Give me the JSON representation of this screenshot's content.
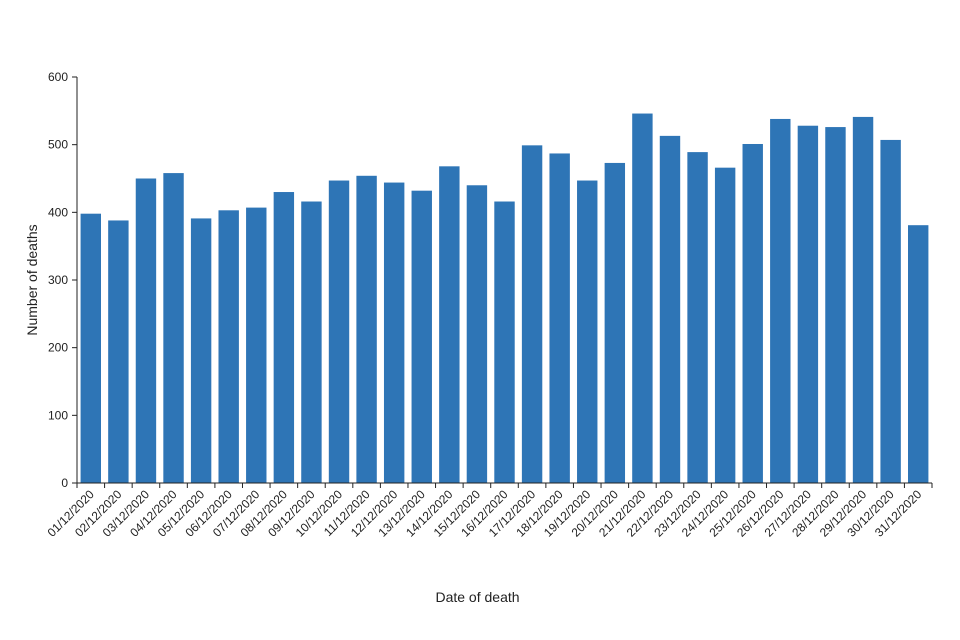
{
  "chart_data": {
    "type": "bar",
    "xlabel": "Date of death",
    "ylabel": "Number of deaths",
    "ylim": [
      0,
      600
    ],
    "yticks": [
      0,
      100,
      200,
      300,
      400,
      500,
      600
    ],
    "grid": false,
    "legend": "none",
    "bar_color": "#2e75b6",
    "categories": [
      "01/12/2020",
      "02/12/2020",
      "03/12/2020",
      "04/12/2020",
      "05/12/2020",
      "06/12/2020",
      "07/12/2020",
      "08/12/2020",
      "09/12/2020",
      "10/12/2020",
      "11/12/2020",
      "12/12/2020",
      "13/12/2020",
      "14/12/2020",
      "15/12/2020",
      "16/12/2020",
      "17/12/2020",
      "18/12/2020",
      "19/12/2020",
      "20/12/2020",
      "21/12/2020",
      "22/12/2020",
      "23/12/2020",
      "24/12/2020",
      "25/12/2020",
      "26/12/2020",
      "27/12/2020",
      "28/12/2020",
      "29/12/2020",
      "30/12/2020",
      "31/12/2020"
    ],
    "values": [
      398,
      388,
      450,
      458,
      391,
      403,
      407,
      430,
      416,
      447,
      454,
      444,
      432,
      468,
      440,
      416,
      499,
      487,
      447,
      473,
      546,
      513,
      489,
      466,
      501,
      538,
      528,
      526,
      541,
      507,
      381
    ]
  }
}
